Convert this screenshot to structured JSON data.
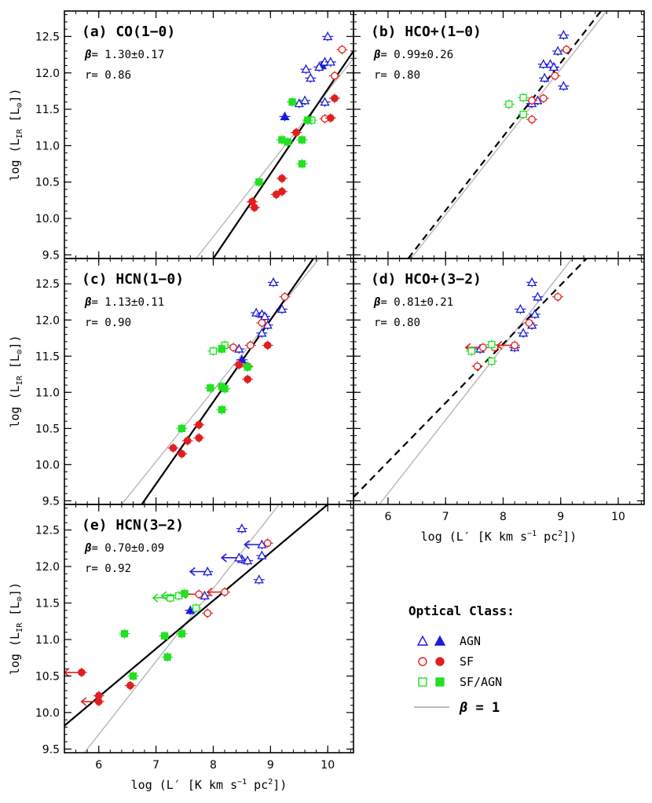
{
  "figure": {
    "y_axis_label": "log (L",
    "y_axis_sub": "IR",
    "y_axis_unit": " [L",
    "y_axis_sun": "⊙",
    "y_axis_close": "])",
    "x_axis_label": "log (L′ [K km s",
    "x_axis_exp": "−1",
    "x_axis_mid": " pc",
    "x_axis_exp2": "2",
    "x_axis_close": "])",
    "beta_symbol": "β",
    "r_symbol": "r="
  },
  "legend": {
    "title": "Optical Class:",
    "entries": [
      {
        "label": "AGN",
        "color": "#1a1adc",
        "shape": "triangle"
      },
      {
        "label": "SF",
        "color": "#e02020",
        "shape": "circle"
      },
      {
        "label": "SF/AGN",
        "color": "#22e022",
        "shape": "square"
      }
    ],
    "beta_line_label": "= 1",
    "beta_line_color": "#bbbbbb"
  },
  "colors": {
    "AGN": "#1a1adc",
    "SF": "#e02020",
    "SFAGN": "#22e022",
    "fit": "#000000",
    "unity": "#bbbbbb"
  },
  "chart_data": [
    {
      "type": "scatter",
      "title": "(a) CO(1−0)",
      "beta": "1.30±0.17",
      "r": "0.86",
      "xlim": [
        5.4,
        10.45
      ],
      "ylim": [
        9.45,
        12.85
      ],
      "xticks": [
        6,
        7,
        8,
        9,
        10
      ],
      "yticks": [
        9.5,
        10.0,
        10.5,
        11.0,
        11.5,
        12.0,
        12.5
      ],
      "show_xlabels": false,
      "show_ylabels": true,
      "fit_line": {
        "style": "solid",
        "points": [
          [
            8.0,
            9.45
          ],
          [
            10.45,
            12.3
          ]
        ]
      },
      "unity_line": {
        "points": [
          [
            7.7,
            9.45
          ],
          [
            10.45,
            12.2
          ]
        ]
      },
      "points": [
        {
          "x": 10.0,
          "y": 12.5,
          "cls": "AGN",
          "filled": false
        },
        {
          "x": 9.62,
          "y": 12.05,
          "cls": "AGN",
          "filled": false
        },
        {
          "x": 9.7,
          "y": 11.93,
          "cls": "AGN",
          "filled": false
        },
        {
          "x": 9.9,
          "y": 12.1,
          "cls": "AGN",
          "filled": true
        },
        {
          "x": 9.95,
          "y": 12.15,
          "cls": "AGN",
          "filled": false
        },
        {
          "x": 9.85,
          "y": 12.08,
          "cls": "AGN",
          "filled": false
        },
        {
          "x": 10.05,
          "y": 12.15,
          "cls": "AGN",
          "filled": false
        },
        {
          "x": 9.6,
          "y": 11.62,
          "cls": "AGN",
          "filled": false
        },
        {
          "x": 9.5,
          "y": 11.58,
          "cls": "AGN",
          "filled": false
        },
        {
          "x": 9.95,
          "y": 11.6,
          "cls": "AGN",
          "filled": false
        },
        {
          "x": 9.25,
          "y": 11.4,
          "cls": "AGN",
          "filled": true
        },
        {
          "x": 10.25,
          "y": 12.32,
          "cls": "SF",
          "filled": false
        },
        {
          "x": 10.12,
          "y": 11.96,
          "cls": "SF",
          "filled": false
        },
        {
          "x": 9.95,
          "y": 11.37,
          "cls": "SF",
          "filled": false
        },
        {
          "x": 10.12,
          "y": 11.65,
          "cls": "SF",
          "filled": true
        },
        {
          "x": 10.05,
          "y": 11.38,
          "cls": "SF",
          "filled": true
        },
        {
          "x": 9.45,
          "y": 11.18,
          "cls": "SF",
          "filled": true
        },
        {
          "x": 9.2,
          "y": 10.55,
          "cls": "SF",
          "filled": true
        },
        {
          "x": 9.1,
          "y": 10.33,
          "cls": "SF",
          "filled": true
        },
        {
          "x": 9.2,
          "y": 10.37,
          "cls": "SF",
          "filled": true
        },
        {
          "x": 8.68,
          "y": 10.23,
          "cls": "SF",
          "filled": true
        },
        {
          "x": 8.72,
          "y": 10.15,
          "cls": "SF",
          "filled": true
        },
        {
          "x": 9.38,
          "y": 11.6,
          "cls": "SFAGN",
          "filled": true
        },
        {
          "x": 9.72,
          "y": 11.35,
          "cls": "SFAGN",
          "filled": false
        },
        {
          "x": 9.65,
          "y": 11.35,
          "cls": "SFAGN",
          "filled": true
        },
        {
          "x": 9.2,
          "y": 11.08,
          "cls": "SFAGN",
          "filled": true
        },
        {
          "x": 9.3,
          "y": 11.05,
          "cls": "SFAGN",
          "filled": true
        },
        {
          "x": 9.55,
          "y": 11.08,
          "cls": "SFAGN",
          "filled": true
        },
        {
          "x": 9.55,
          "y": 10.75,
          "cls": "SFAGN",
          "filled": true
        },
        {
          "x": 8.8,
          "y": 10.5,
          "cls": "SFAGN",
          "filled": true
        }
      ]
    },
    {
      "type": "scatter",
      "title": "(b) HCO+(1−0)",
      "beta": "0.99±0.26",
      "r": "0.80",
      "xlim": [
        5.4,
        10.45
      ],
      "ylim": [
        9.45,
        12.85
      ],
      "xticks": [
        6,
        7,
        8,
        9,
        10
      ],
      "yticks": [
        9.5,
        10.0,
        10.5,
        11.0,
        11.5,
        12.0,
        12.5
      ],
      "show_xlabels": false,
      "show_ylabels": false,
      "fit_line": {
        "style": "dashed",
        "points": [
          [
            6.35,
            9.45
          ],
          [
            9.7,
            12.85
          ]
        ]
      },
      "unity_line": {
        "points": [
          [
            6.4,
            9.45
          ],
          [
            9.8,
            12.85
          ]
        ]
      },
      "points": [
        {
          "x": 9.05,
          "y": 12.52,
          "cls": "AGN",
          "filled": false
        },
        {
          "x": 8.95,
          "y": 12.3,
          "cls": "AGN",
          "filled": false
        },
        {
          "x": 8.7,
          "y": 12.12,
          "cls": "AGN",
          "filled": false
        },
        {
          "x": 8.82,
          "y": 12.12,
          "cls": "AGN",
          "filled": false
        },
        {
          "x": 8.88,
          "y": 12.08,
          "cls": "AGN",
          "filled": false
        },
        {
          "x": 8.72,
          "y": 11.93,
          "cls": "AGN",
          "filled": false
        },
        {
          "x": 9.05,
          "y": 11.82,
          "cls": "AGN",
          "filled": false
        },
        {
          "x": 8.6,
          "y": 11.62,
          "cls": "AGN",
          "filled": false
        },
        {
          "x": 8.5,
          "y": 11.58,
          "cls": "AGN",
          "filled": false
        },
        {
          "x": 9.1,
          "y": 12.32,
          "cls": "SF",
          "filled": false
        },
        {
          "x": 8.9,
          "y": 11.96,
          "cls": "SF",
          "filled": false
        },
        {
          "x": 8.7,
          "y": 11.65,
          "cls": "SF",
          "filled": false
        },
        {
          "x": 8.5,
          "y": 11.62,
          "cls": "SF",
          "filled": false
        },
        {
          "x": 8.5,
          "y": 11.36,
          "cls": "SF",
          "filled": false
        },
        {
          "x": 8.1,
          "y": 11.57,
          "cls": "SFAGN",
          "filled": false
        },
        {
          "x": 8.35,
          "y": 11.66,
          "cls": "SFAGN",
          "filled": false
        },
        {
          "x": 8.35,
          "y": 11.43,
          "cls": "SFAGN",
          "filled": false
        }
      ]
    },
    {
      "type": "scatter",
      "title": "(c) HCN(1−0)",
      "beta": "1.13±0.11",
      "r": "0.90",
      "xlim": [
        5.4,
        10.45
      ],
      "ylim": [
        9.45,
        12.85
      ],
      "xticks": [
        6,
        7,
        8,
        9,
        10
      ],
      "yticks": [
        9.5,
        10.0,
        10.5,
        11.0,
        11.5,
        12.0,
        12.5
      ],
      "show_xlabels": false,
      "show_ylabels": true,
      "fit_line": {
        "style": "solid",
        "points": [
          [
            6.75,
            9.45
          ],
          [
            9.75,
            12.85
          ]
        ]
      },
      "unity_line": {
        "points": [
          [
            6.4,
            9.45
          ],
          [
            9.85,
            12.85
          ]
        ]
      },
      "points": [
        {
          "x": 9.05,
          "y": 12.52,
          "cls": "AGN",
          "filled": false
        },
        {
          "x": 9.2,
          "y": 12.15,
          "cls": "AGN",
          "filled": false
        },
        {
          "x": 8.75,
          "y": 12.1,
          "cls": "AGN",
          "filled": false
        },
        {
          "x": 8.85,
          "y": 12.08,
          "cls": "AGN",
          "filled": false
        },
        {
          "x": 8.9,
          "y": 12.05,
          "cls": "AGN",
          "filled": false
        },
        {
          "x": 8.95,
          "y": 11.93,
          "cls": "AGN",
          "filled": false
        },
        {
          "x": 8.85,
          "y": 11.82,
          "cls": "AGN",
          "filled": false
        },
        {
          "x": 8.45,
          "y": 11.6,
          "cls": "AGN",
          "filled": false
        },
        {
          "x": 8.5,
          "y": 11.45,
          "cls": "AGN",
          "filled": true
        },
        {
          "x": 9.25,
          "y": 12.32,
          "cls": "SF",
          "filled": false
        },
        {
          "x": 8.85,
          "y": 11.96,
          "cls": "SF",
          "filled": false
        },
        {
          "x": 8.65,
          "y": 11.65,
          "cls": "SF",
          "filled": false
        },
        {
          "x": 8.35,
          "y": 11.62,
          "cls": "SF",
          "filled": false
        },
        {
          "x": 8.6,
          "y": 11.36,
          "cls": "SF",
          "filled": false
        },
        {
          "x": 8.95,
          "y": 11.65,
          "cls": "SF",
          "filled": true
        },
        {
          "x": 8.45,
          "y": 11.38,
          "cls": "SF",
          "filled": true
        },
        {
          "x": 8.6,
          "y": 11.18,
          "cls": "SF",
          "filled": true
        },
        {
          "x": 7.75,
          "y": 10.55,
          "cls": "SF",
          "filled": true
        },
        {
          "x": 7.55,
          "y": 10.33,
          "cls": "SF",
          "filled": true
        },
        {
          "x": 7.75,
          "y": 10.37,
          "cls": "SF",
          "filled": true
        },
        {
          "x": 7.3,
          "y": 10.23,
          "cls": "SF",
          "filled": true
        },
        {
          "x": 7.45,
          "y": 10.15,
          "cls": "SF",
          "filled": true
        },
        {
          "x": 8.2,
          "y": 11.65,
          "cls": "SFAGN",
          "filled": false
        },
        {
          "x": 8.0,
          "y": 11.57,
          "cls": "SFAGN",
          "filled": false
        },
        {
          "x": 8.15,
          "y": 11.6,
          "cls": "SFAGN",
          "filled": true
        },
        {
          "x": 8.6,
          "y": 11.35,
          "cls": "SFAGN",
          "filled": true
        },
        {
          "x": 7.95,
          "y": 11.06,
          "cls": "SFAGN",
          "filled": true
        },
        {
          "x": 8.15,
          "y": 11.08,
          "cls": "SFAGN",
          "filled": true
        },
        {
          "x": 8.2,
          "y": 11.05,
          "cls": "SFAGN",
          "filled": true
        },
        {
          "x": 8.15,
          "y": 10.76,
          "cls": "SFAGN",
          "filled": true
        },
        {
          "x": 7.45,
          "y": 10.5,
          "cls": "SFAGN",
          "filled": true
        }
      ]
    },
    {
      "type": "scatter",
      "title": "(d) HCO+(3−2)",
      "beta": "0.81±0.21",
      "r": "0.80",
      "xlim": [
        5.4,
        10.45
      ],
      "ylim": [
        9.45,
        12.85
      ],
      "xticks": [
        6,
        7,
        8,
        9,
        10
      ],
      "yticks": [
        9.5,
        10.0,
        10.5,
        11.0,
        11.5,
        12.0,
        12.5
      ],
      "show_xlabels": true,
      "show_ylabels": false,
      "fit_line": {
        "style": "dashed",
        "points": [
          [
            5.4,
            9.55
          ],
          [
            9.45,
            12.85
          ]
        ]
      },
      "unity_line": {
        "points": [
          [
            5.85,
            9.45
          ],
          [
            9.2,
            12.85
          ]
        ]
      },
      "points": [
        {
          "x": 8.5,
          "y": 12.52,
          "cls": "AGN",
          "filled": false
        },
        {
          "x": 8.6,
          "y": 12.32,
          "cls": "AGN",
          "filled": false
        },
        {
          "x": 8.3,
          "y": 12.15,
          "cls": "AGN",
          "filled": false
        },
        {
          "x": 8.55,
          "y": 12.08,
          "cls": "AGN",
          "filled": false
        },
        {
          "x": 8.5,
          "y": 11.93,
          "cls": "AGN",
          "filled": false
        },
        {
          "x": 8.35,
          "y": 11.82,
          "cls": "AGN",
          "filled": false
        },
        {
          "x": 8.2,
          "y": 11.62,
          "cls": "AGN",
          "filled": false
        },
        {
          "x": 7.6,
          "y": 11.6,
          "cls": "AGN",
          "filled": false
        },
        {
          "x": 8.95,
          "y": 12.32,
          "cls": "SF",
          "filled": false
        },
        {
          "x": 8.45,
          "y": 11.96,
          "cls": "SF",
          "filled": false
        },
        {
          "x": 8.2,
          "y": 11.65,
          "cls": "SF",
          "filled": false,
          "limit": "left"
        },
        {
          "x": 7.85,
          "y": 11.62,
          "cls": "SF",
          "filled": false
        },
        {
          "x": 7.65,
          "y": 11.62,
          "cls": "SF",
          "filled": false,
          "limit": "left"
        },
        {
          "x": 7.55,
          "y": 11.36,
          "cls": "SF",
          "filled": false
        },
        {
          "x": 7.45,
          "y": 11.57,
          "cls": "SFAGN",
          "filled": false
        },
        {
          "x": 7.8,
          "y": 11.66,
          "cls": "SFAGN",
          "filled": false
        },
        {
          "x": 7.8,
          "y": 11.43,
          "cls": "SFAGN",
          "filled": false
        }
      ]
    },
    {
      "type": "scatter",
      "title": "(e) HCN(3−2)",
      "beta": "0.70±0.09",
      "r": "0.92",
      "xlim": [
        5.4,
        10.45
      ],
      "ylim": [
        9.45,
        12.85
      ],
      "xticks": [
        6,
        7,
        8,
        9,
        10
      ],
      "yticks": [
        9.5,
        10.0,
        10.5,
        11.0,
        11.5,
        12.0,
        12.5
      ],
      "show_xlabels": true,
      "show_ylabels": true,
      "fit_line": {
        "style": "solid",
        "points": [
          [
            5.4,
            9.82
          ],
          [
            10.0,
            12.85
          ]
        ]
      },
      "unity_line": {
        "points": [
          [
            5.75,
            9.45
          ],
          [
            9.15,
            12.85
          ]
        ]
      },
      "points": [
        {
          "x": 8.5,
          "y": 12.52,
          "cls": "AGN",
          "filled": false
        },
        {
          "x": 8.85,
          "y": 12.15,
          "cls": "AGN",
          "filled": false
        },
        {
          "x": 8.85,
          "y": 12.3,
          "cls": "AGN",
          "filled": false,
          "limit": "left"
        },
        {
          "x": 8.5,
          "y": 12.1,
          "cls": "AGN",
          "filled": false
        },
        {
          "x": 8.6,
          "y": 12.08,
          "cls": "AGN",
          "filled": false
        },
        {
          "x": 8.45,
          "y": 12.12,
          "cls": "AGN",
          "filled": false,
          "limit": "left"
        },
        {
          "x": 7.9,
          "y": 11.93,
          "cls": "AGN",
          "filled": false,
          "limit": "left"
        },
        {
          "x": 8.8,
          "y": 11.82,
          "cls": "AGN",
          "filled": false
        },
        {
          "x": 7.85,
          "y": 11.6,
          "cls": "AGN",
          "filled": false
        },
        {
          "x": 7.6,
          "y": 11.4,
          "cls": "AGN",
          "filled": true
        },
        {
          "x": 8.95,
          "y": 12.32,
          "cls": "SF",
          "filled": false
        },
        {
          "x": 8.2,
          "y": 11.65,
          "cls": "SF",
          "filled": false,
          "limit": "left"
        },
        {
          "x": 7.75,
          "y": 11.62,
          "cls": "SF",
          "filled": false,
          "limit": "left"
        },
        {
          "x": 7.9,
          "y": 11.36,
          "cls": "SF",
          "filled": false
        },
        {
          "x": 5.7,
          "y": 10.55,
          "cls": "SF",
          "filled": true,
          "limit": "left"
        },
        {
          "x": 6.55,
          "y": 10.37,
          "cls": "SF",
          "filled": true
        },
        {
          "x": 6.0,
          "y": 10.23,
          "cls": "SF",
          "filled": true
        },
        {
          "x": 6.0,
          "y": 10.15,
          "cls": "SF",
          "filled": true,
          "limit": "left"
        },
        {
          "x": 7.25,
          "y": 11.57,
          "cls": "SFAGN",
          "filled": false,
          "limit": "left"
        },
        {
          "x": 7.4,
          "y": 11.6,
          "cls": "SFAGN",
          "filled": false,
          "limit": "left"
        },
        {
          "x": 7.5,
          "y": 11.63,
          "cls": "SFAGN",
          "filled": true
        },
        {
          "x": 7.7,
          "y": 11.43,
          "cls": "SFAGN",
          "filled": false
        },
        {
          "x": 6.45,
          "y": 11.08,
          "cls": "SFAGN",
          "filled": true
        },
        {
          "x": 7.15,
          "y": 11.05,
          "cls": "SFAGN",
          "filled": true
        },
        {
          "x": 7.45,
          "y": 11.08,
          "cls": "SFAGN",
          "filled": true
        },
        {
          "x": 7.2,
          "y": 10.76,
          "cls": "SFAGN",
          "filled": true
        },
        {
          "x": 6.6,
          "y": 10.5,
          "cls": "SFAGN",
          "filled": true
        }
      ]
    }
  ]
}
